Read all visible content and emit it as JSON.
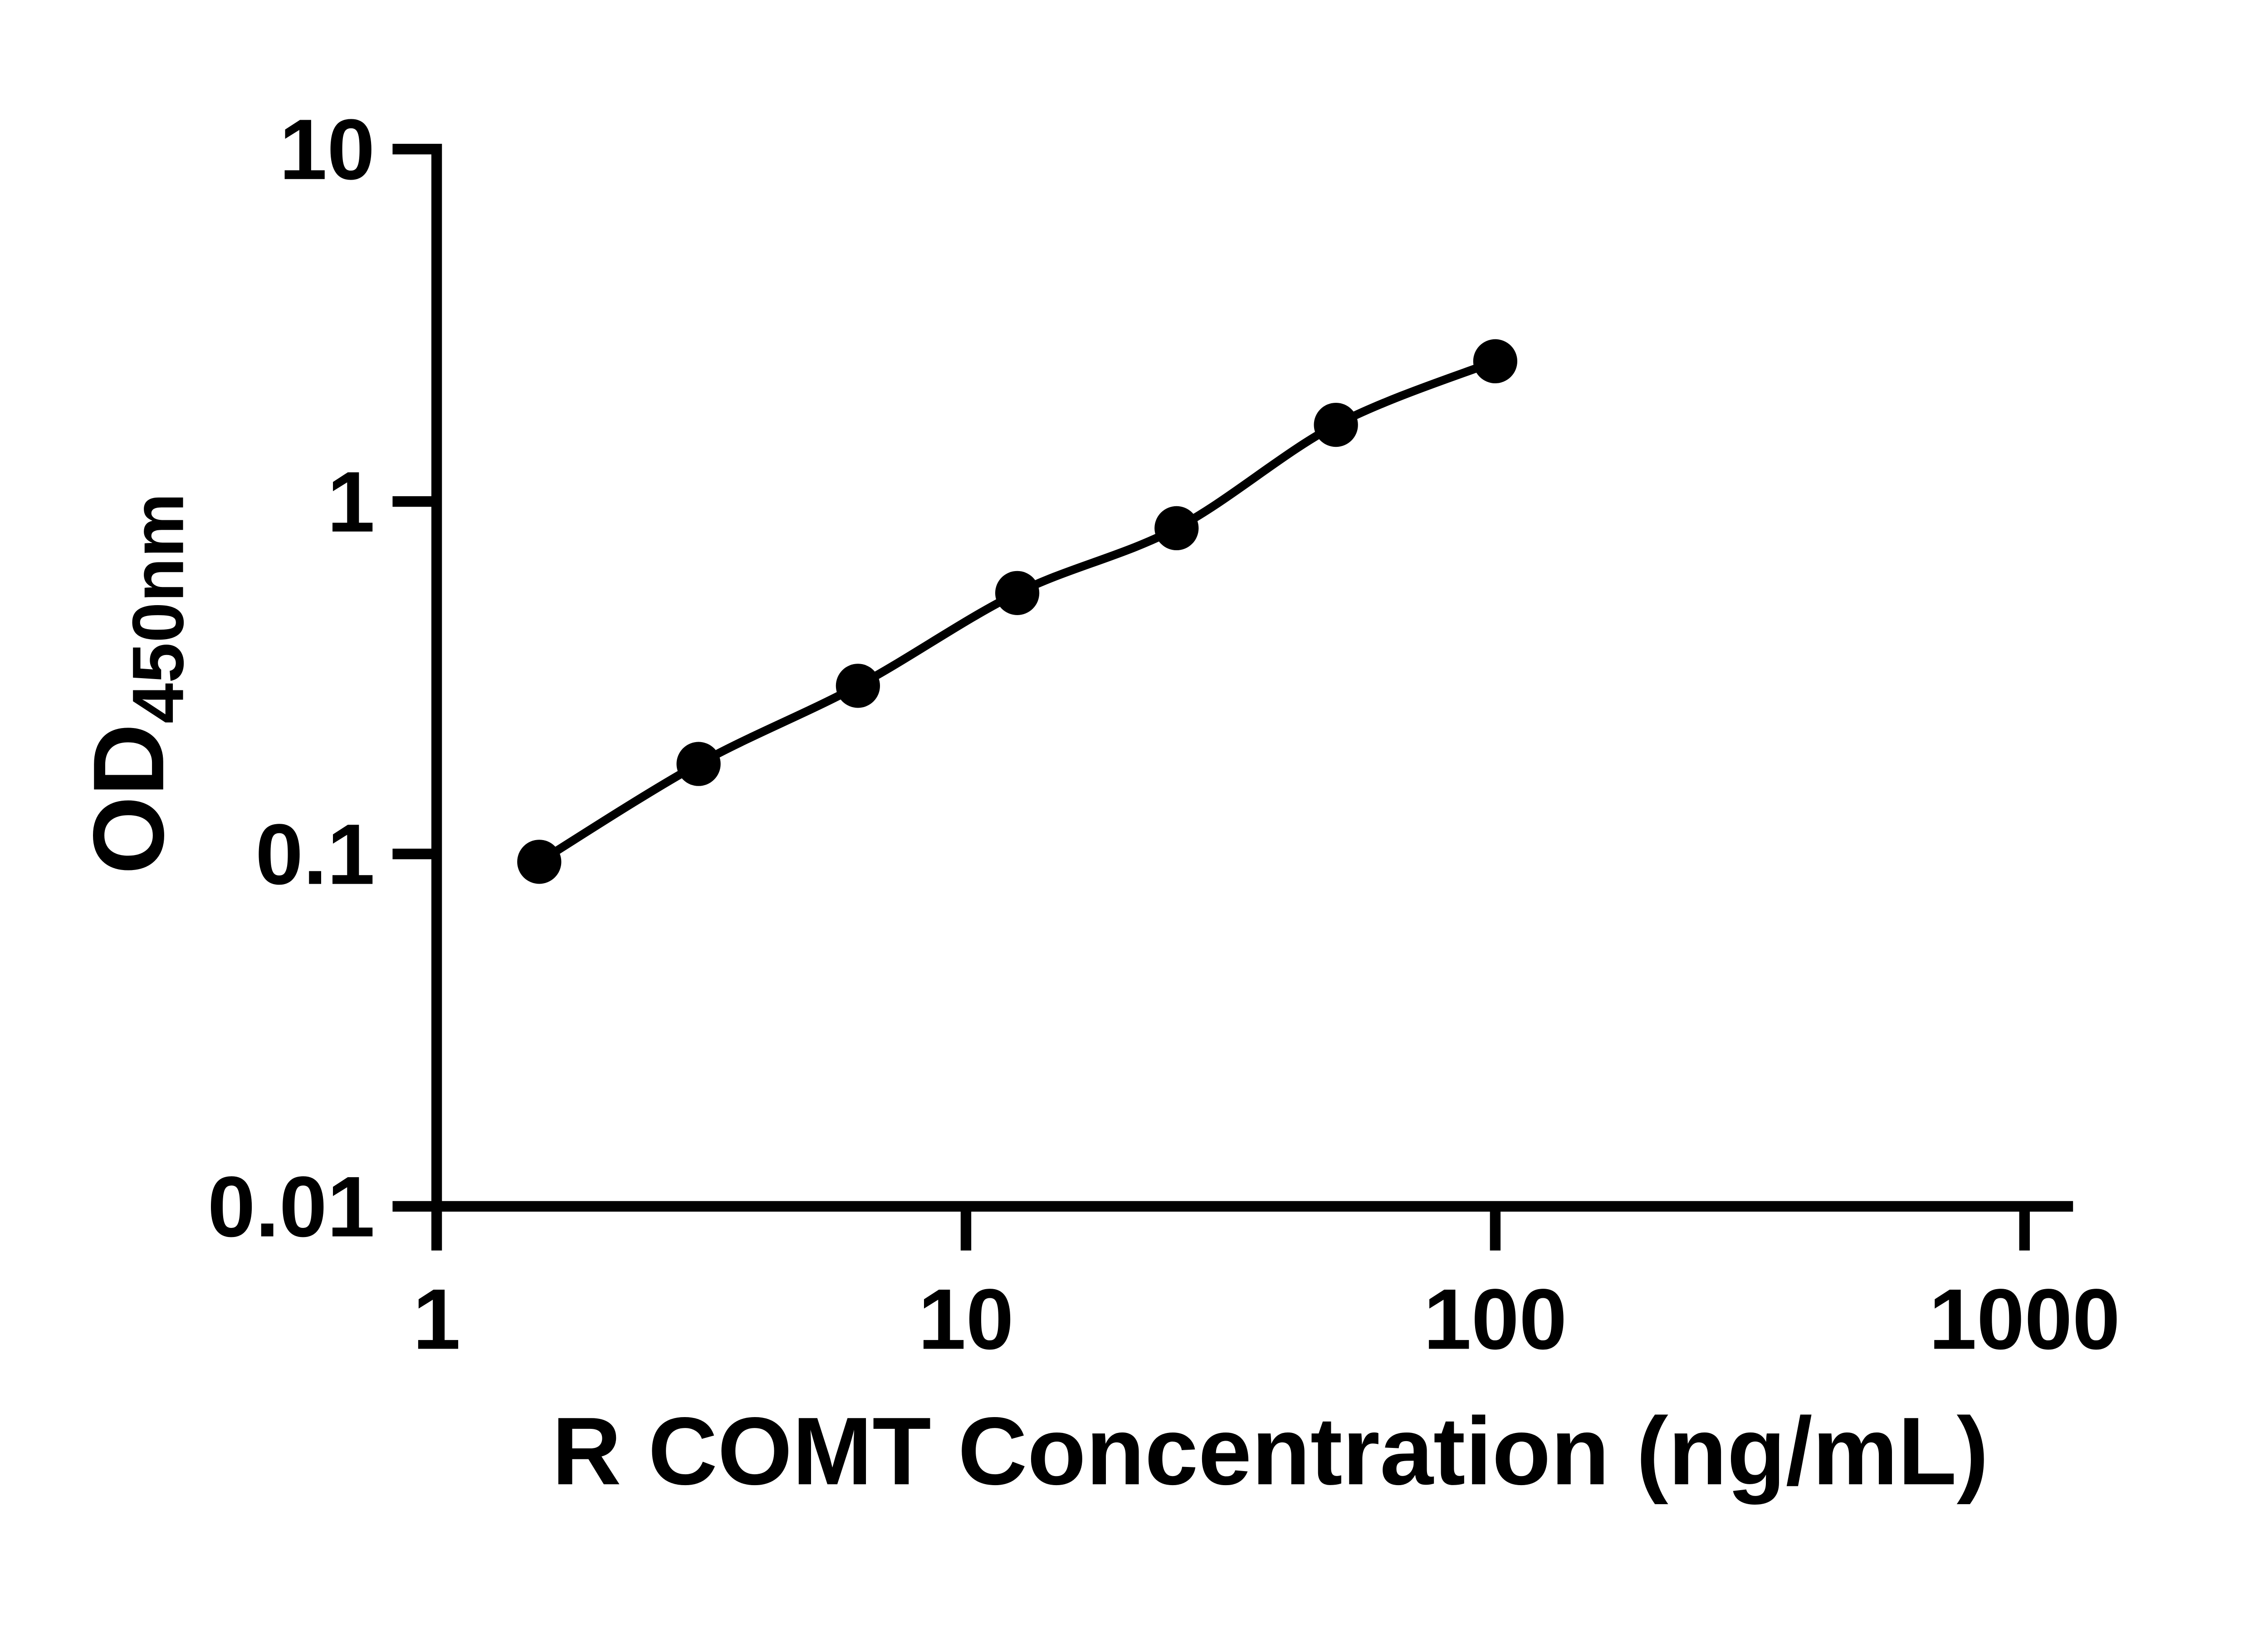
{
  "chart_data": {
    "type": "scatter",
    "subtype": "log-log standard curve with connecting smooth line",
    "x": [
      1.5625,
      3.125,
      6.25,
      12.5,
      25,
      50,
      100
    ],
    "y": [
      0.095,
      0.18,
      0.3,
      0.55,
      0.84,
      1.65,
      2.5
    ],
    "title": "",
    "xlabel": "R COMT Concentration (ng/mL)",
    "ylabel_main": "OD",
    "ylabel_sub": "450nm",
    "x_scale": "log10",
    "y_scale": "log10",
    "xlim": [
      1,
      1000
    ],
    "ylim": [
      0.01,
      10
    ],
    "x_ticks": {
      "values": [
        1,
        10,
        100,
        1000
      ],
      "labels": [
        "1",
        "10",
        "100",
        "1000"
      ]
    },
    "y_ticks": {
      "values": [
        10,
        1,
        0.1,
        0.01
      ],
      "labels": [
        "10",
        "1",
        "0.1",
        "0.01"
      ]
    },
    "grid": false,
    "legend": "none",
    "marker": "filled-circle",
    "colors": {
      "marker": "#000000",
      "line": "#000000",
      "axis": "#000000",
      "text": "#000000",
      "background": "#ffffff"
    }
  }
}
